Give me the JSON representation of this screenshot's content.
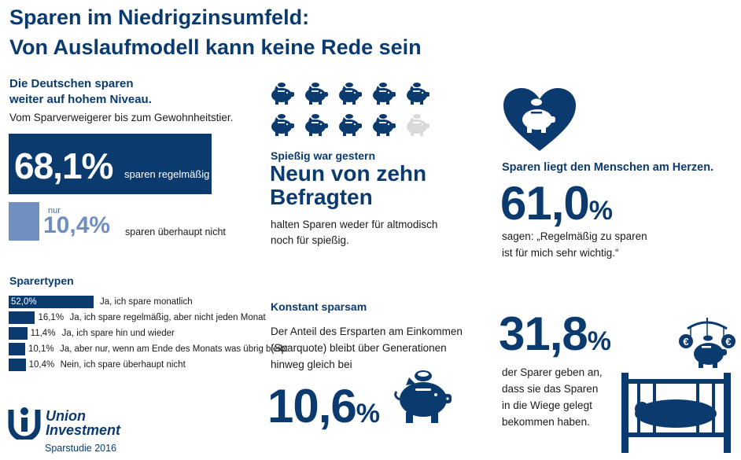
{
  "title_line1": "Sparen im Niedrigzinsumfeld:",
  "title_line2": "Von Auslaufmodell kann keine Rede sein",
  "left": {
    "heading_line1": "Die Deutschen sparen",
    "heading_line2": "weiter auf hohem Niveau.",
    "subheading": "Vom Sparverweigerer bis zum Gewohnheitstier.",
    "big_value": "68,1%",
    "big_label": "sparen regelmäßig",
    "nur": "nur",
    "small_value": "10,4%",
    "small_label": "sparen überhaupt nicht"
  },
  "chart_data": {
    "type": "bar",
    "title": "Sparertypen",
    "orientation": "horizontal",
    "unit": "%",
    "categories": [
      "Ja, ich spare monatlich",
      "Ja, ich spare regelmäßig, aber nicht jeden Monat",
      "Ja, ich spare hin und wieder",
      "Ja, aber nur, wenn am Ende des Monats was übrig bleibt",
      "Nein, ich spare überhaupt nicht"
    ],
    "values": [
      52.0,
      16.1,
      11.4,
      10.1,
      10.4
    ],
    "value_labels": [
      "52,0%",
      "16,1%",
      "11,4%",
      "10,1%",
      "10,4%"
    ],
    "bar_color": "#0b3a6f"
  },
  "middle": {
    "pigs_total": 10,
    "pigs_filled": 9,
    "pig_color": "#0b3a6f",
    "pig_empty_color": "#d9d9d9",
    "kicker": "Spießig war gestern",
    "headline_line1": "Neun von zehn",
    "headline_line2": "Befragten",
    "text_line1": "halten Sparen weder für altmodisch",
    "text_line2": "noch für spießig.",
    "konstant_heading": "Konstant sparsam",
    "konstant_line1": "Der Anteil des Ersparten am Einkommen",
    "konstant_line2": "(Sparquote) bleibt über Generationen",
    "konstant_line3": "hinweg gleich bei",
    "quote_value": "10,6",
    "quote_pct": "%"
  },
  "right": {
    "heart_heading": "Sparen liegt den Menschen am Herzen.",
    "heart_value": "61,0",
    "heart_pct": "%",
    "heart_text_line1": "sagen: „Regelmäßig zu sparen",
    "heart_text_line2": "ist für mich sehr wichtig.“",
    "cradle_value": "31,8",
    "cradle_pct": "%",
    "cradle_line1": "der Sparer geben an,",
    "cradle_line2": "dass sie das Sparen",
    "cradle_line3": "in die Wiege gelegt",
    "cradle_line4": "bekommen haben."
  },
  "logo": {
    "line1": "Union",
    "line2": "Investment",
    "caption": "Sparstudie 2016"
  }
}
